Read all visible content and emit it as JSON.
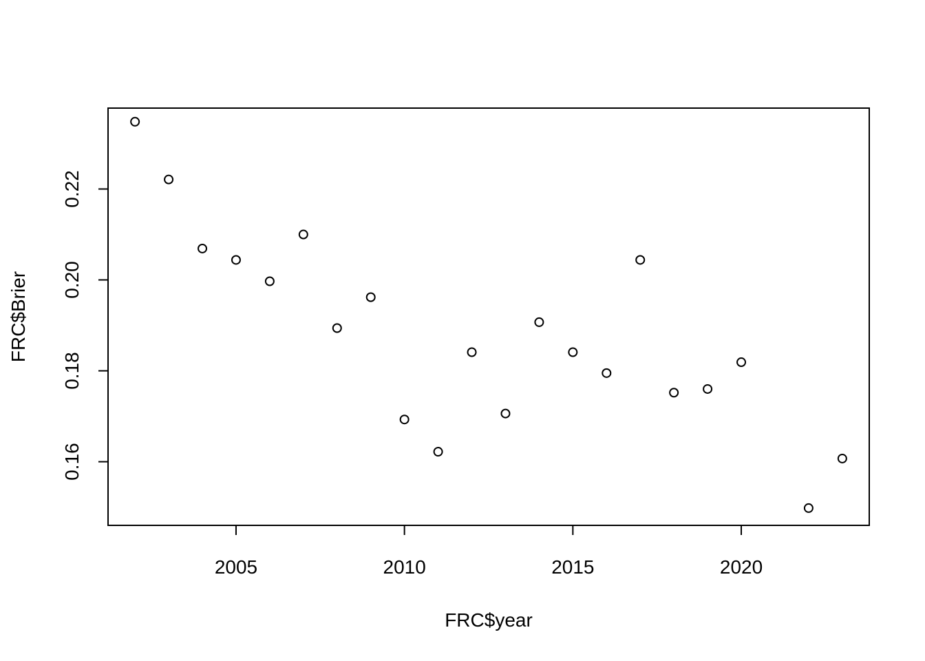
{
  "chart_data": {
    "type": "scatter",
    "title": "",
    "xlabel": "FRC$year",
    "ylabel": "FRC$Brier",
    "xlim": [
      2001.2,
      2023.8
    ],
    "ylim": [
      0.146,
      0.2378
    ],
    "x_ticks": [
      2005,
      2010,
      2015,
      2020
    ],
    "x_tick_labels": [
      "2005",
      "2010",
      "2015",
      "2020"
    ],
    "y_ticks": [
      0.16,
      0.18,
      0.2,
      0.22
    ],
    "y_tick_labels": [
      "0.16",
      "0.18",
      "0.20",
      "0.22"
    ],
    "grid": false,
    "legend": "none",
    "marker": "open-circle",
    "color": "#000000",
    "series": [
      {
        "x": [
          2002,
          2003,
          2004,
          2005,
          2006,
          2007,
          2008,
          2009,
          2010,
          2011,
          2012,
          2013,
          2014,
          2015,
          2016,
          2017,
          2018,
          2019,
          2020,
          2022,
          2023
        ],
        "y": [
          0.2348,
          0.2221,
          0.2069,
          0.2044,
          0.1997,
          0.21,
          0.1894,
          0.1962,
          0.1693,
          0.1622,
          0.1841,
          0.1706,
          0.1907,
          0.1841,
          0.1795,
          0.2044,
          0.1752,
          0.176,
          0.1819,
          0.1498,
          0.1607
        ]
      }
    ]
  }
}
